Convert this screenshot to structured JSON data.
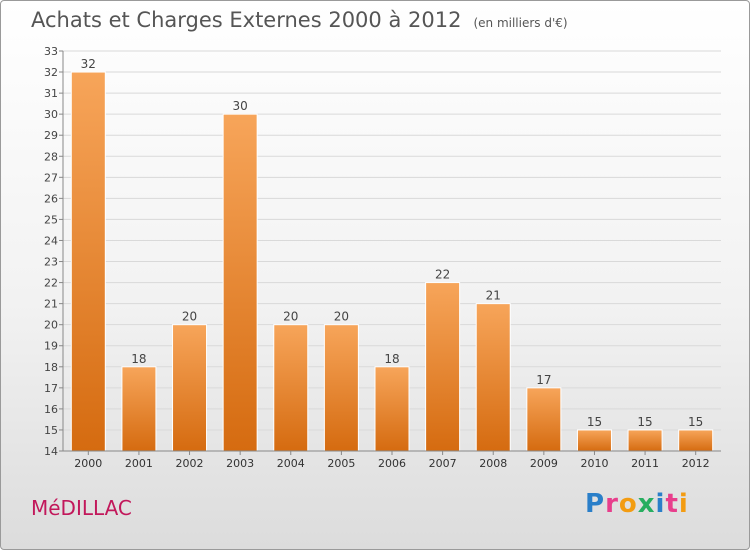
{
  "header": {
    "title": "Achats et Charges Externes 2000 à 2012",
    "subtitle": "(en milliers d'€)"
  },
  "footer": {
    "commune": "MéDILLAC",
    "logo_text": "Proxiti",
    "logo_letters": [
      {
        "ch": "P",
        "color": "#2a7fc9"
      },
      {
        "ch": "r",
        "color": "#e83e8c"
      },
      {
        "ch": "o",
        "color": "#f39c12"
      },
      {
        "ch": "x",
        "color": "#27ae60"
      },
      {
        "ch": "i",
        "color": "#2a7fc9"
      },
      {
        "ch": "t",
        "color": "#e83e8c"
      },
      {
        "ch": "i",
        "color": "#f39c12"
      }
    ]
  },
  "chart_data": {
    "type": "bar",
    "categories": [
      "2000",
      "2001",
      "2002",
      "2003",
      "2004",
      "2005",
      "2006",
      "2007",
      "2008",
      "2009",
      "2010",
      "2011",
      "2012"
    ],
    "values": [
      32,
      18,
      20,
      30,
      20,
      20,
      18,
      22,
      21,
      17,
      15,
      15,
      15
    ],
    "ylim": [
      14,
      33
    ],
    "yticks": [
      14,
      15,
      16,
      17,
      18,
      19,
      20,
      21,
      22,
      23,
      24,
      25,
      26,
      27,
      28,
      29,
      30,
      31,
      32,
      33
    ],
    "grid": true,
    "bar_color": "#f0913a"
  }
}
